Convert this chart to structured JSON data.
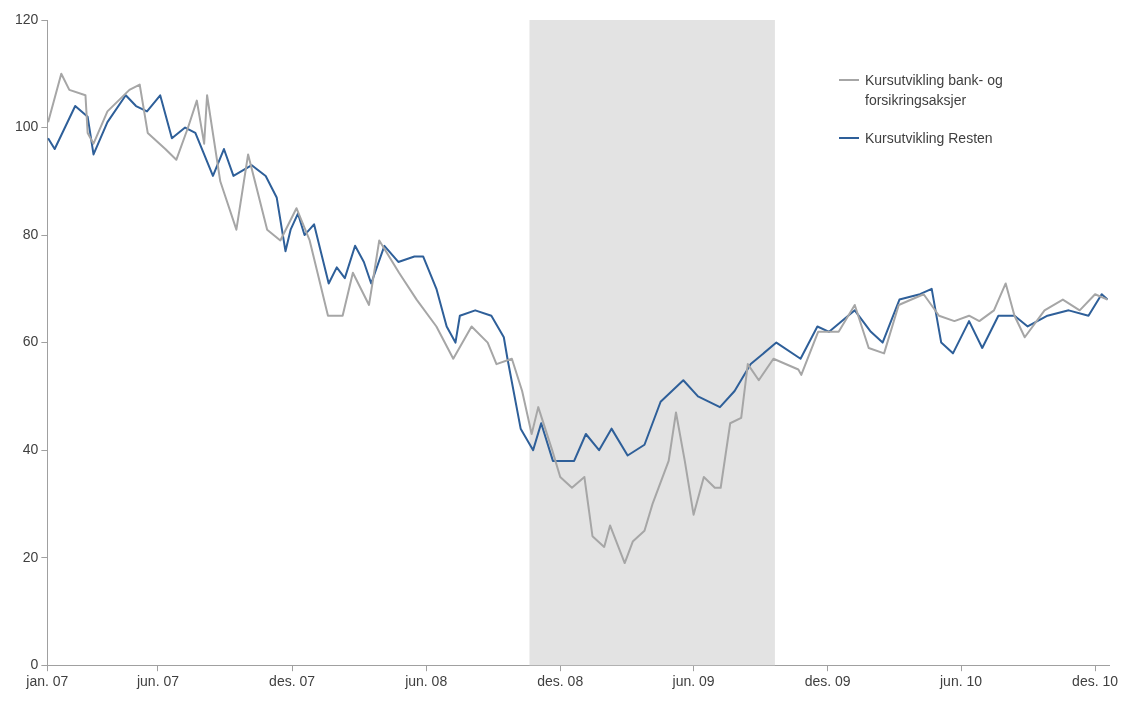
{
  "chart_data": {
    "type": "line",
    "xlim": [
      "2007-01-01",
      "2010-12-20"
    ],
    "xticks": [
      {
        "value": "2007-01-01",
        "label": "jan. 07"
      },
      {
        "value": "2007-06-01",
        "label": "jun. 07"
      },
      {
        "value": "2007-12-01",
        "label": "des. 07"
      },
      {
        "value": "2008-06-01",
        "label": "jun. 08"
      },
      {
        "value": "2008-12-01",
        "label": "des. 08"
      },
      {
        "value": "2009-06-01",
        "label": "jun. 09"
      },
      {
        "value": "2009-12-01",
        "label": "des. 09"
      },
      {
        "value": "2010-06-01",
        "label": "jun. 10"
      },
      {
        "value": "2010-12-01",
        "label": "des. 10"
      }
    ],
    "ylim": [
      0,
      120
    ],
    "yticks": [
      0,
      20,
      40,
      60,
      80,
      100,
      120
    ],
    "legend": "top right",
    "bands": [
      {
        "axis": "x",
        "from": "2008-10-20",
        "to": "2009-09-20",
        "color": "#e3e3e3"
      }
    ],
    "series": [
      {
        "name": "Kursutvikling bank- og forsikringsaksjer",
        "color": "#a6a6a6",
        "x": [
          "2007-01-02",
          "2007-01-20",
          "2007-01-31",
          "2007-02-22",
          "2007-02-25",
          "2007-03-05",
          "2007-03-24",
          "2007-04-23",
          "2007-05-07",
          "2007-05-18",
          "2007-06-11",
          "2007-06-26",
          "2007-07-12",
          "2007-07-24",
          "2007-08-03",
          "2007-08-07",
          "2007-08-25",
          "2007-09-16",
          "2007-10-02",
          "2007-10-28",
          "2007-11-15",
          "2007-12-07",
          "2007-12-25",
          "2008-01-19",
          "2008-02-08",
          "2008-02-22",
          "2008-03-15",
          "2008-03-29",
          "2008-04-25",
          "2008-05-19",
          "2008-06-15",
          "2008-07-08",
          "2008-08-02",
          "2008-08-24",
          "2008-09-05",
          "2008-09-26",
          "2008-10-10",
          "2008-10-23",
          "2008-11-01",
          "2008-11-20",
          "2008-12-01",
          "2008-12-17",
          "2009-01-03",
          "2009-01-14",
          "2009-01-30",
          "2009-02-07",
          "2009-02-27",
          "2009-03-10",
          "2009-03-26",
          "2009-04-06",
          "2009-04-28",
          "2009-05-08",
          "2009-05-20",
          "2009-06-01",
          "2009-06-15",
          "2009-06-30",
          "2009-07-08",
          "2009-07-21",
          "2009-08-05",
          "2009-08-14",
          "2009-08-29",
          "2009-09-18",
          "2009-10-22",
          "2009-10-26",
          "2009-11-18",
          "2009-12-16",
          "2010-01-07",
          "2010-01-26",
          "2010-02-16",
          "2010-03-08",
          "2010-04-11",
          "2010-05-02",
          "2010-05-23",
          "2010-06-12",
          "2010-06-26",
          "2010-07-16",
          "2010-08-01",
          "2010-08-13",
          "2010-08-27",
          "2010-09-23",
          "2010-10-18",
          "2010-11-10",
          "2010-12-01",
          "2010-12-18"
        ],
        "values": [
          101,
          110,
          107,
          106,
          99,
          97,
          103,
          107,
          108,
          99,
          96,
          94,
          100,
          105,
          97,
          106,
          90,
          81,
          95,
          81,
          79,
          85,
          79,
          65,
          65,
          73,
          67,
          79,
          73,
          68,
          63,
          57,
          63,
          60,
          56,
          57,
          51,
          43,
          48,
          40,
          35,
          33,
          35,
          24,
          22,
          26,
          19,
          23,
          25,
          30,
          38,
          47,
          38,
          28,
          35,
          33,
          33,
          45,
          46,
          56,
          53,
          57,
          55,
          54,
          62,
          62,
          67,
          59,
          58,
          67,
          69,
          65,
          64,
          65,
          64,
          66,
          71,
          65,
          61,
          66,
          68,
          66,
          69,
          68
        ]
      },
      {
        "name": "Kursutvikling Resten",
        "color": "#2e5f99",
        "x": [
          "2007-01-02",
          "2007-01-11",
          "2007-02-08",
          "2007-02-25",
          "2007-03-05",
          "2007-03-24",
          "2007-04-18",
          "2007-05-02",
          "2007-05-17",
          "2007-06-04",
          "2007-06-20",
          "2007-07-08",
          "2007-07-22",
          "2007-08-15",
          "2007-08-30",
          "2007-09-12",
          "2007-10-07",
          "2007-10-26",
          "2007-11-10",
          "2007-11-22",
          "2007-11-29",
          "2007-12-09",
          "2007-12-18",
          "2007-12-31",
          "2008-01-20",
          "2008-01-31",
          "2008-02-11",
          "2008-02-25",
          "2008-03-08",
          "2008-03-18",
          "2008-04-05",
          "2008-04-24",
          "2008-05-16",
          "2008-05-28",
          "2008-06-15",
          "2008-06-29",
          "2008-07-11",
          "2008-07-17",
          "2008-08-07",
          "2008-08-29",
          "2008-09-15",
          "2008-09-20",
          "2008-10-08",
          "2008-10-25",
          "2008-11-05",
          "2008-11-21",
          "2008-12-20",
          "2009-01-05",
          "2009-01-23",
          "2009-02-09",
          "2009-03-03",
          "2009-03-26",
          "2009-04-17",
          "2009-05-18",
          "2009-06-07",
          "2009-07-07",
          "2009-07-27",
          "2009-08-18",
          "2009-09-22",
          "2009-10-25",
          "2009-11-17",
          "2009-12-03",
          "2010-01-07",
          "2010-01-29",
          "2010-02-14",
          "2010-03-09",
          "2010-04-06",
          "2010-04-22",
          "2010-05-05",
          "2010-05-21",
          "2010-06-12",
          "2010-06-30",
          "2010-07-22",
          "2010-08-13",
          "2010-08-31",
          "2010-09-27",
          "2010-10-26",
          "2010-11-22",
          "2010-12-10",
          "2010-12-18"
        ],
        "values": [
          98,
          96,
          104,
          102,
          95,
          101,
          106,
          104,
          103,
          106,
          98,
          100,
          99,
          91,
          96,
          91,
          93,
          91,
          87,
          77,
          81,
          84,
          80,
          82,
          71,
          74,
          72,
          78,
          75,
          71,
          78,
          75,
          76,
          76,
          70,
          63,
          60,
          65,
          66,
          65,
          61,
          57,
          44,
          40,
          45,
          38,
          38,
          43,
          40,
          44,
          39,
          41,
          49,
          53,
          50,
          48,
          51,
          56,
          60,
          57,
          63,
          62,
          66,
          62,
          60,
          68,
          69,
          70,
          60,
          58,
          64,
          59,
          65,
          65,
          63,
          65,
          66,
          65,
          69,
          68
        ]
      }
    ]
  }
}
